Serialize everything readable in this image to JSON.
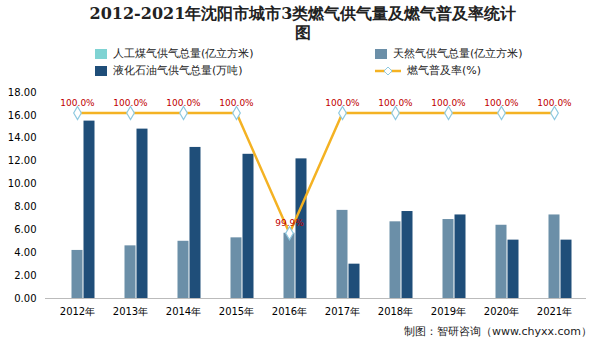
{
  "chart_data": {
    "type": "bar",
    "title": "2012-2021年沈阳市城市3类燃气供气量及燃气普及率统计图",
    "caption": "制图：智研咨询（www.chyxx.com）",
    "categories": [
      "2012年",
      "2013年",
      "2014年",
      "2015年",
      "2016年",
      "2017年",
      "2018年",
      "2019年",
      "2020年",
      "2021年"
    ],
    "series": [
      {
        "name": "人工煤气供气总量(亿立方米)",
        "color": "#7fd3d3",
        "values": [
          0,
          0,
          0,
          0,
          0,
          0,
          0,
          0,
          0,
          0
        ]
      },
      {
        "name": "天然气供气总量(亿立方米)",
        "color": "#6b8fa8",
        "values": [
          4.2,
          4.6,
          5.0,
          5.3,
          5.7,
          7.7,
          6.7,
          6.9,
          6.4,
          7.3
        ]
      },
      {
        "name": "液化石油气供气总量(万吨)",
        "color": "#1f4e79",
        "values": [
          15.5,
          14.8,
          13.2,
          12.6,
          12.2,
          3.0,
          7.6,
          7.3,
          5.1,
          5.1
        ]
      },
      {
        "name": "燃气普及率(%)",
        "type": "line",
        "axis": "y2",
        "color": "#f4b223",
        "marker": "diamond",
        "data_labels": true,
        "values": [
          100,
          100,
          100,
          100,
          99.9,
          100,
          100,
          100,
          100,
          100
        ],
        "value_labels": [
          "100.0%",
          "100.0%",
          "100.0%",
          "100.0%",
          "99.9%",
          "100.0%",
          "100.0%",
          "100.0%",
          "100.0%",
          "100.0%"
        ]
      }
    ],
    "ylim": [
      0,
      18
    ],
    "yticks": [
      {
        "value": 0,
        "label": "0.00"
      },
      {
        "value": 2,
        "label": "2.00"
      },
      {
        "value": 4,
        "label": "4.00"
      },
      {
        "value": 6,
        "label": "6.00"
      },
      {
        "value": 8,
        "label": "8.00"
      },
      {
        "value": 10,
        "label": "10.00"
      },
      {
        "value": 12,
        "label": "12.00"
      },
      {
        "value": 14,
        "label": "14.00"
      },
      {
        "value": 16,
        "label": "16.00"
      },
      {
        "value": 18,
        "label": "18.00"
      }
    ],
    "y2lim": [
      99.8457,
      100.0171
    ],
    "y2ticks": [],
    "legend": "top",
    "grid": false
  }
}
